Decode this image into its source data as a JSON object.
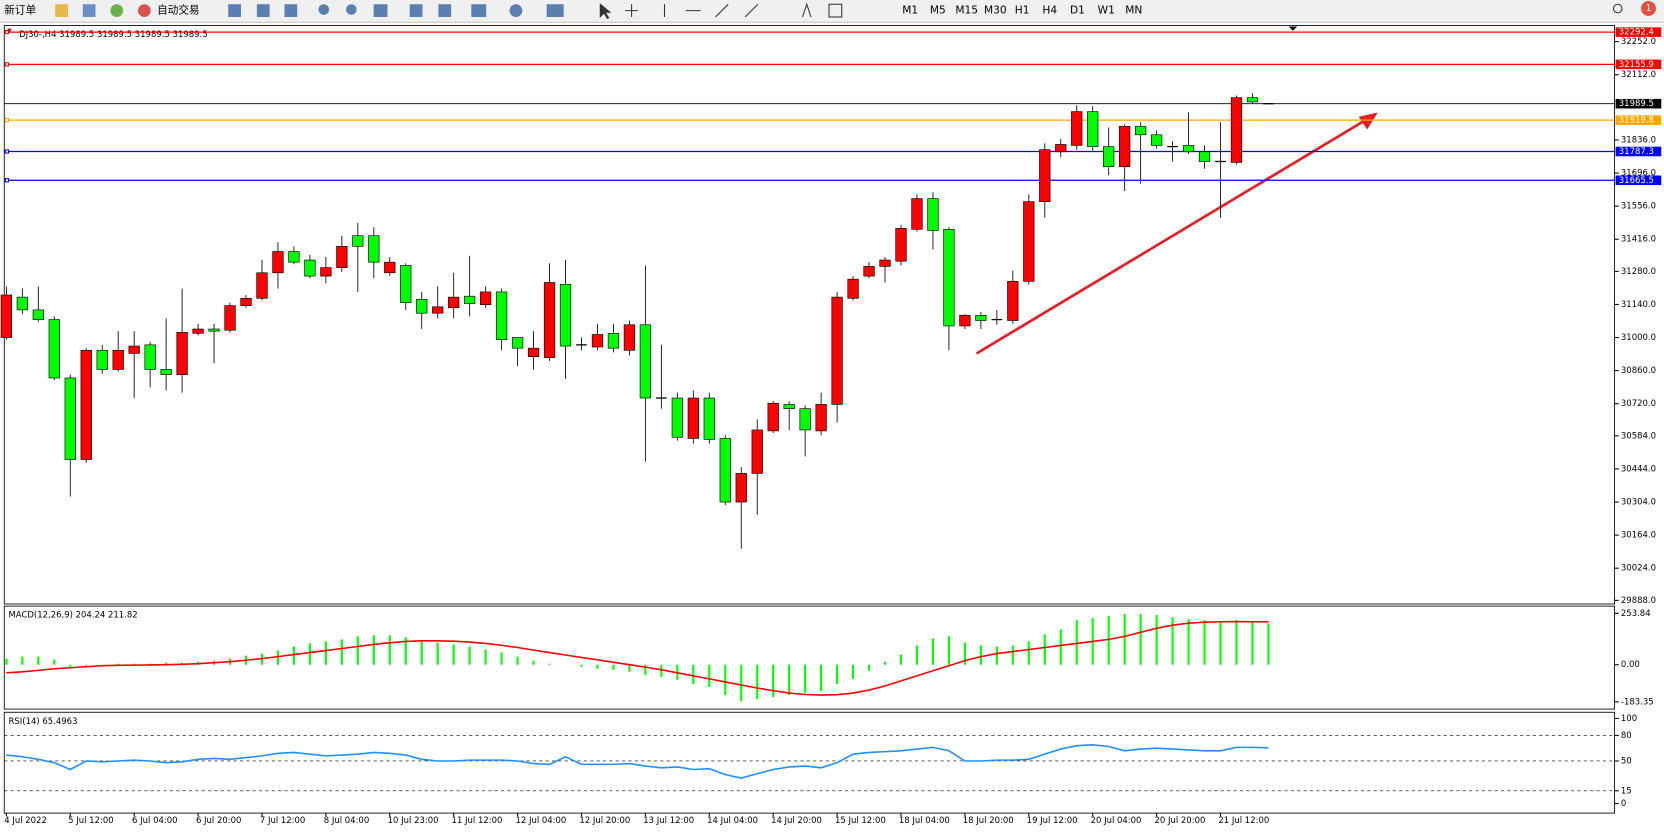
{
  "toolbar": {
    "new_order": "新订单",
    "auto_trading": "自动交易",
    "timeframes": [
      "M1",
      "M5",
      "M15",
      "M30",
      "H1",
      "H4",
      "D1",
      "W1",
      "MN"
    ],
    "notification_count": 1
  },
  "chart_data": [
    {
      "type": "candlestick",
      "title": "DJ30-,H4",
      "up_color": "#ff0000",
      "down_color": "#00ff00",
      "price_line_color": "#000000",
      "categories": [
        "4 Jul 2022",
        null,
        null,
        null,
        "5 Jul 12:00",
        null,
        null,
        null,
        "6 Jul 04:00",
        null,
        null,
        null,
        "6 Jul 20:00",
        null,
        null,
        null,
        "7 Jul 12:00",
        null,
        null,
        null,
        "8 Jul 04:00",
        null,
        null,
        null,
        "10 Jul 23:00",
        null,
        null,
        null,
        "11 Jul 12:00",
        null,
        null,
        null,
        "12 Jul 04:00",
        null,
        null,
        null,
        "12 Jul 20:00",
        null,
        null,
        null,
        "13 Jul 12:00",
        null,
        null,
        null,
        "14 Jul 04:00",
        null,
        null,
        null,
        "14 Jul 20:00",
        null,
        null,
        null,
        "15 Jul 12:00",
        null,
        null,
        null,
        "18 Jul 04:00",
        null,
        null,
        null,
        "18 Jul 20:00",
        null,
        null,
        null,
        "19 Jul 12:00",
        null,
        null,
        null,
        "20 Jul 04:00",
        null,
        null,
        null,
        "20 Jul 20:00",
        null,
        null,
        null,
        "21 Jul 12:00",
        null,
        null,
        null
      ],
      "open": [
        31000,
        31171,
        31117,
        31076,
        30829,
        30484,
        30946,
        30865,
        30933,
        30969,
        30865,
        30843,
        31018,
        31036,
        31031,
        31135,
        31166,
        31274,
        31364,
        31328,
        31260,
        31296,
        31431,
        31431,
        31274,
        31305,
        31162,
        31103,
        31126,
        31175,
        31139,
        31193,
        31000,
        30919,
        30915,
        31225,
        30969,
        30960,
        31018,
        30946,
        31054,
        30744,
        30744,
        30573,
        30744,
        30573,
        30304,
        30425,
        30605,
        30717,
        30699,
        30605,
        30717,
        31166,
        31260,
        31301,
        31323,
        31458,
        31588,
        31458,
        31049,
        31094,
        31076,
        31072,
        31238,
        31575,
        31786,
        31813,
        31956,
        31808,
        31723,
        31894,
        31858,
        31808,
        31813,
        31786,
        31745,
        31741,
        32015,
        31989.5
      ],
      "high": [
        31216,
        31207,
        31216,
        31090,
        30843,
        30955,
        30969,
        31027,
        31027,
        30982,
        31081,
        31207,
        31058,
        31058,
        31148,
        31180,
        31328,
        31404,
        31386,
        31350,
        31341,
        31431,
        31485,
        31467,
        31341,
        31314,
        31193,
        31216,
        31274,
        31346,
        31216,
        31207,
        31000,
        31027,
        31314,
        31328,
        31000,
        31058,
        31058,
        31072,
        31305,
        30969,
        30767,
        30776,
        30767,
        30587,
        30452,
        30654,
        30731,
        30731,
        30713,
        30767,
        31193,
        31260,
        31319,
        31341,
        31476,
        31606,
        31615,
        31467,
        31099,
        31108,
        31117,
        31283,
        31606,
        31822,
        31840,
        31983,
        31979,
        31889,
        31902,
        31911,
        31876,
        31831,
        31952,
        31813,
        31911,
        32024,
        32033,
        31989.5
      ],
      "low": [
        30991,
        31099,
        31067,
        30820,
        30327,
        30470,
        30847,
        30856,
        30744,
        30789,
        30776,
        30767,
        31009,
        30892,
        31022,
        31126,
        31157,
        31207,
        31310,
        31251,
        31229,
        31278,
        31193,
        31251,
        31260,
        31117,
        31036,
        31081,
        31081,
        31090,
        31126,
        30946,
        30879,
        30865,
        30901,
        30825,
        30946,
        30946,
        30937,
        30924,
        30475,
        30699,
        30564,
        30551,
        30551,
        30291,
        30106,
        30250,
        30596,
        30609,
        30497,
        30587,
        30641,
        31157,
        31251,
        31233,
        31305,
        31449,
        31373,
        30946,
        31036,
        31036,
        31054,
        31058,
        31225,
        31507,
        31763,
        31795,
        31790,
        31687,
        31620,
        31651,
        31799,
        31745,
        31777,
        31714,
        31507,
        31732,
        31988,
        31989.5
      ],
      "close": [
        31180,
        31117,
        31076,
        30829,
        30484,
        30946,
        30865,
        30946,
        30964,
        30865,
        30843,
        31022,
        31036,
        31027,
        31135,
        31166,
        31274,
        31364,
        31319,
        31260,
        31296,
        31386,
        31386,
        31319,
        31319,
        31148,
        31103,
        31130,
        31171,
        31144,
        31193,
        30991,
        30955,
        30955,
        31233,
        30964,
        30969,
        31013,
        30955,
        31054,
        30744,
        30744,
        30578,
        30744,
        30569,
        30304,
        30425,
        30609,
        30722,
        30699,
        30609,
        30717,
        31171,
        31247,
        31301,
        31328,
        31462,
        31588,
        31453,
        31049,
        31094,
        31072,
        31076,
        31238,
        31575,
        31795,
        31817,
        31956,
        31808,
        31723,
        31894,
        31858,
        31813,
        31808,
        31786,
        31745,
        31745,
        32015,
        31997,
        31989.5
      ],
      "ylim": [
        29877,
        32316
      ],
      "yticks": [
        {
          "value": 32252,
          "label": "32252.0"
        },
        {
          "value": 32112,
          "label": "32112.0"
        },
        {
          "value": 31836,
          "label": "31836.0"
        },
        {
          "value": 31696,
          "label": "31696.0"
        },
        {
          "value": 31556,
          "label": "31556.0"
        },
        {
          "value": 31416,
          "label": "31416.0"
        },
        {
          "value": 31280,
          "label": "31280.0"
        },
        {
          "value": 31140,
          "label": "31140.0"
        },
        {
          "value": 31000,
          "label": "31000.0"
        },
        {
          "value": 30860,
          "label": "30860.0"
        },
        {
          "value": 30720,
          "label": "30720.0"
        },
        {
          "value": 30584,
          "label": "30584.0"
        },
        {
          "value": 30444,
          "label": "30444.0"
        },
        {
          "value": 30304,
          "label": "30304.0"
        },
        {
          "value": 30164,
          "label": "30164.0"
        },
        {
          "value": 30024,
          "label": "30024.0"
        },
        {
          "value": 29888,
          "label": "29888.0"
        }
      ],
      "levels": [
        {
          "value": 32292.4,
          "color": "#ff0000"
        },
        {
          "value": 32155.9,
          "color": "#ff0000"
        },
        {
          "value": 31919.8,
          "color": "#ffa500"
        },
        {
          "value": 31787.3,
          "color": "#0000ff"
        },
        {
          "value": 31665.5,
          "color": "#0000ff"
        }
      ]
    },
    {
      "type": "macd",
      "title": "MACD(12,26,9)",
      "series": [
        {
          "kind": "bar",
          "color": "#00ff00",
          "values": [
            30,
            40,
            40,
            25,
            -10,
            -5,
            0,
            5,
            5,
            5,
            10,
            10,
            15,
            20,
            30,
            45,
            55,
            70,
            90,
            105,
            115,
            125,
            140,
            145,
            145,
            135,
            120,
            110,
            100,
            90,
            75,
            60,
            40,
            20,
            5,
            0,
            -10,
            -20,
            -25,
            -35,
            -50,
            -60,
            -75,
            -95,
            -110,
            -150,
            -180,
            -170,
            -160,
            -150,
            -140,
            -130,
            -95,
            -70,
            -30,
            15,
            50,
            95,
            130,
            140,
            110,
            95,
            90,
            95,
            115,
            150,
            175,
            220,
            230,
            240,
            250,
            250,
            245,
            235,
            225,
            220,
            215,
            220,
            215,
            204.24
          ]
        },
        {
          "kind": "line",
          "color": "#ff0000",
          "values": [
            -40,
            -35,
            -28,
            -20,
            -15,
            -10,
            -5,
            -3,
            -2,
            -1,
            0,
            2,
            5,
            10,
            15,
            22,
            30,
            40,
            50,
            60,
            70,
            80,
            90,
            100,
            108,
            115,
            118,
            118,
            116,
            112,
            105,
            96,
            85,
            72,
            60,
            48,
            36,
            24,
            12,
            0,
            -12,
            -25,
            -40,
            -55,
            -70,
            -85,
            -100,
            -115,
            -128,
            -140,
            -147,
            -150,
            -148,
            -140,
            -125,
            -105,
            -80,
            -55,
            -30,
            -5,
            20,
            40,
            55,
            65,
            75,
            85,
            95,
            105,
            115,
            125,
            140,
            160,
            180,
            195,
            205,
            210,
            212,
            213,
            212,
            211.82
          ]
        }
      ],
      "ylim": [
        -219,
        284
      ],
      "yticks": [
        253.84,
        {
          "value": 0,
          "label": "0.00"
        },
        -183.35
      ]
    },
    {
      "type": "line",
      "title": "RSI(14)",
      "series": [
        {
          "color": "#1e90ff",
          "values": [
            57,
            55,
            52,
            48,
            40,
            50,
            49,
            50,
            51,
            50,
            48,
            49,
            52,
            53,
            52,
            54,
            56,
            59,
            60,
            58,
            56,
            57,
            58,
            60,
            59,
            57,
            52,
            50,
            50,
            51,
            51,
            51,
            50,
            47,
            46,
            55,
            46,
            46,
            46,
            47,
            44,
            42,
            43,
            40,
            41,
            34,
            30,
            35,
            40,
            43,
            44,
            42,
            48,
            58,
            60,
            61,
            62,
            64,
            66,
            62,
            50,
            50,
            51,
            51,
            52,
            58,
            64,
            68,
            69,
            67,
            62,
            64,
            65,
            64,
            63,
            62,
            62,
            66,
            66,
            65.4963
          ]
        }
      ],
      "ylim": [
        -10,
        106
      ],
      "yticks": [
        100,
        80,
        50,
        15,
        0
      ],
      "levels": [
        80,
        50,
        15
      ]
    }
  ]
}
